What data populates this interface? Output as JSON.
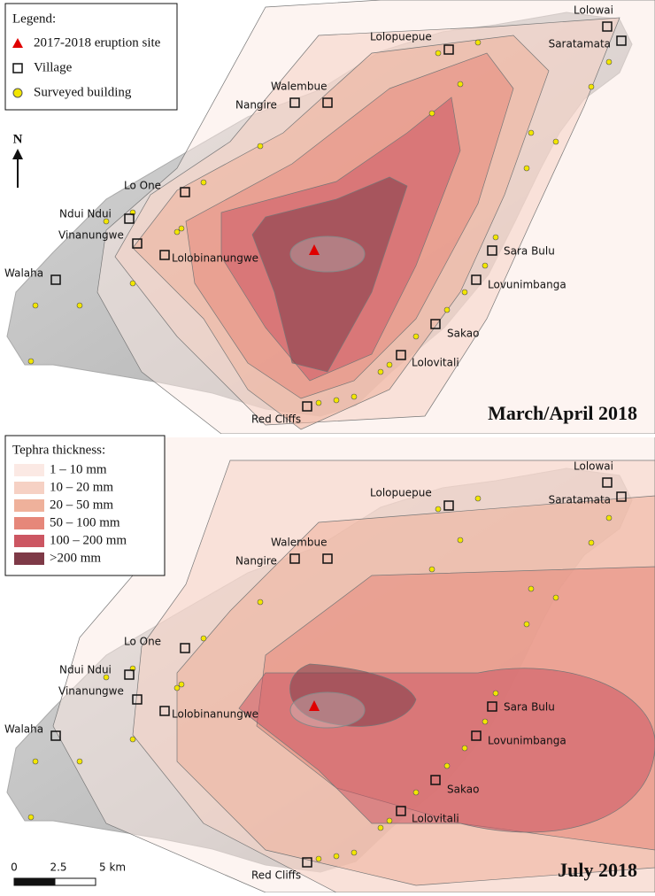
{
  "legend": {
    "title": "Legend:",
    "items": [
      "2017-2018 eruption site",
      "Village",
      "Surveyed building"
    ]
  },
  "tephra_legend": {
    "title": "Tephra thickness:",
    "classes": [
      "1 – 10 mm",
      "10 – 20 mm",
      "20 – 50 mm",
      "50 – 100 mm",
      "100 – 200 mm",
      ">200 mm"
    ]
  },
  "north": "N",
  "villages": [
    "Lolowai",
    "Saratamata",
    "Lolopuepue",
    "Walembue",
    "Nangire",
    "Lo One",
    "Ndui Ndui",
    "Vinanungwe",
    "Lolobinanungwe",
    "Walaha",
    "Sara Bulu",
    "Lovunimbanga",
    "Sakao",
    "Lolovitali",
    "Red Cliffs"
  ],
  "panels": [
    {
      "title": "March/April 2018"
    },
    {
      "title": "July 2018"
    }
  ],
  "scale_bar": {
    "labels": [
      "0",
      "2.5",
      "5 km"
    ]
  }
}
